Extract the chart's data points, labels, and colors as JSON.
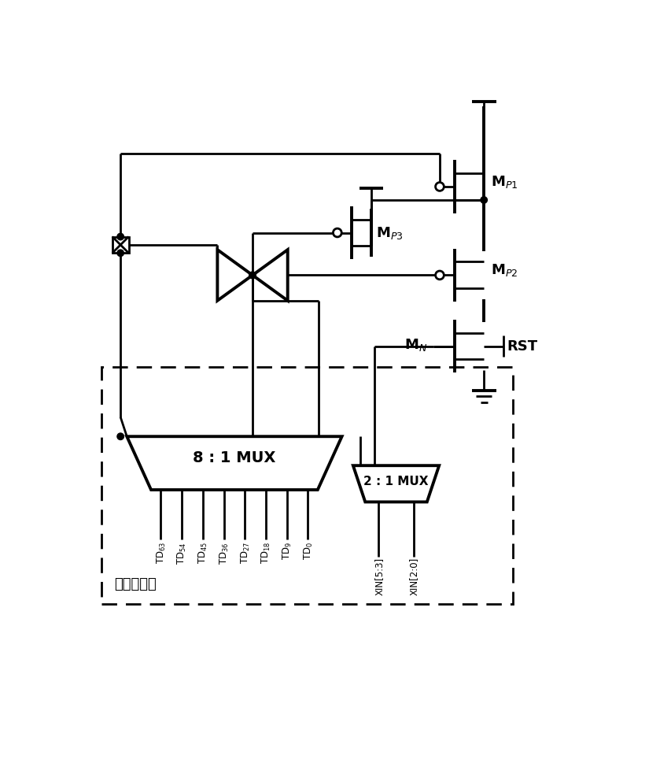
{
  "fig_width": 8.39,
  "fig_height": 9.74,
  "bg_color": "#ffffff",
  "lc": "#000000",
  "lw": 2.0,
  "lwt": 2.8,
  "fs": 13,
  "fss": 11,
  "fsxs": 8.5,
  "labels": {
    "MP1": "M$_{P1}$",
    "MP2": "M$_{P2}$",
    "MP3": "M$_{P3}$",
    "MN": "M$_N$",
    "RST": "RST",
    "mux81": "8 : 1 MUX",
    "mux21": "2 : 1 MUX",
    "mux_area": "多路复用器",
    "TD": [
      "TD$_{63}$",
      "TD$_{54}$",
      "TD$_{45}$",
      "TD$_{36}$",
      "TD$_{27}$",
      "TD$_{18}$",
      "TD$_9$",
      "TD$_0$"
    ],
    "XIN": [
      "XIN[5:3]",
      "XIN[2:0]"
    ]
  }
}
